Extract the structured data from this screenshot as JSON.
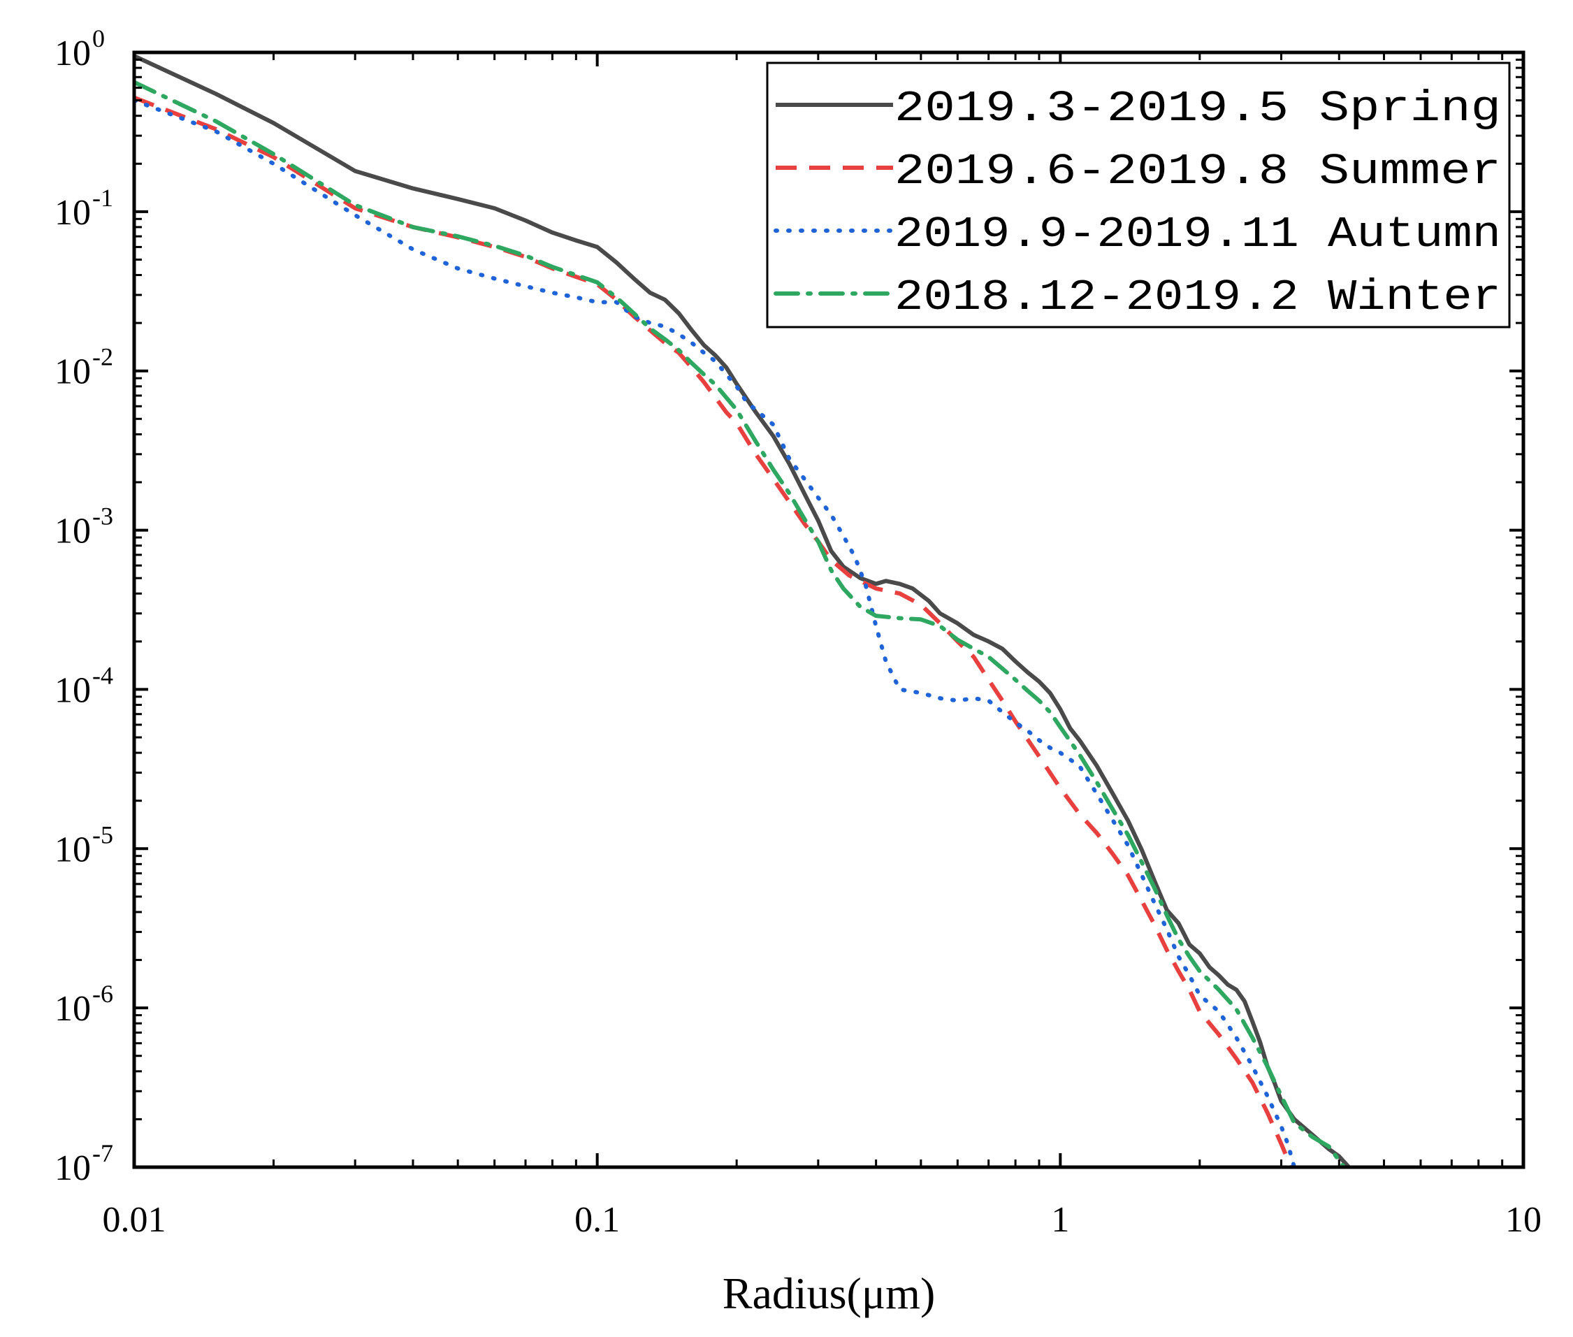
{
  "chart_data": {
    "type": "line",
    "title": "",
    "xlabel": "Radius(μm)",
    "ylabel": "",
    "xscale": "log",
    "yscale": "log",
    "xlim": [
      0.01,
      10
    ],
    "ylim": [
      1e-07,
      1
    ],
    "grid": false,
    "legend_position": "top-right",
    "x_ticks": [
      {
        "value": 0.01,
        "label": "0.01"
      },
      {
        "value": 0.1,
        "label": "0.1"
      },
      {
        "value": 1,
        "label": "1"
      },
      {
        "value": 10,
        "label": "10"
      }
    ],
    "y_ticks": [
      {
        "value": 1,
        "base": "10",
        "exp": "0"
      },
      {
        "value": 0.1,
        "base": "10",
        "exp": "-1"
      },
      {
        "value": 0.01,
        "base": "10",
        "exp": "-2"
      },
      {
        "value": 0.001,
        "base": "10",
        "exp": "-3"
      },
      {
        "value": 0.0001,
        "base": "10",
        "exp": "-4"
      },
      {
        "value": 1e-05,
        "base": "10",
        "exp": "-5"
      },
      {
        "value": 1e-06,
        "base": "10",
        "exp": "-6"
      },
      {
        "value": 1e-07,
        "base": "10",
        "exp": "-7"
      }
    ],
    "series": [
      {
        "name": "2019.3-2019.5  Spring",
        "color": "#4a4a4a",
        "style": "solid",
        "points": [
          [
            0.01,
            0.95
          ],
          [
            0.015,
            0.55
          ],
          [
            0.02,
            0.36
          ],
          [
            0.03,
            0.18
          ],
          [
            0.04,
            0.14
          ],
          [
            0.05,
            0.12
          ],
          [
            0.06,
            0.105
          ],
          [
            0.07,
            0.088
          ],
          [
            0.08,
            0.074
          ],
          [
            0.09,
            0.066
          ],
          [
            0.1,
            0.06
          ],
          [
            0.11,
            0.048
          ],
          [
            0.12,
            0.038
          ],
          [
            0.13,
            0.031
          ],
          [
            0.14,
            0.028
          ],
          [
            0.15,
            0.023
          ],
          [
            0.16,
            0.018
          ],
          [
            0.17,
            0.0145
          ],
          [
            0.18,
            0.0125
          ],
          [
            0.19,
            0.0105
          ],
          [
            0.2,
            0.0083
          ],
          [
            0.22,
            0.0055
          ],
          [
            0.24,
            0.0039
          ],
          [
            0.26,
            0.0026
          ],
          [
            0.28,
            0.0017
          ],
          [
            0.3,
            0.00115
          ],
          [
            0.32,
            0.00074
          ],
          [
            0.34,
            0.00059
          ],
          [
            0.37,
            0.0005
          ],
          [
            0.4,
            0.00046
          ],
          [
            0.42,
            0.00048
          ],
          [
            0.45,
            0.00046
          ],
          [
            0.48,
            0.00043
          ],
          [
            0.52,
            0.00036
          ],
          [
            0.55,
            0.0003
          ],
          [
            0.6,
            0.00026
          ],
          [
            0.65,
            0.00022
          ],
          [
            0.7,
            0.0002
          ],
          [
            0.75,
            0.00018
          ],
          [
            0.8,
            0.00015
          ],
          [
            0.85,
            0.000128
          ],
          [
            0.9,
            0.000112
          ],
          [
            0.95,
            9.5e-05
          ],
          [
            1.0,
            7.5e-05
          ],
          [
            1.05,
            5.7e-05
          ],
          [
            1.1,
            4.8e-05
          ],
          [
            1.2,
            3.3e-05
          ],
          [
            1.3,
            2.2e-05
          ],
          [
            1.4,
            1.5e-05
          ],
          [
            1.5,
            9.8e-06
          ],
          [
            1.6,
            6.2e-06
          ],
          [
            1.7,
            4.1e-06
          ],
          [
            1.8,
            3.4e-06
          ],
          [
            1.9,
            2.5e-06
          ],
          [
            2.0,
            2.2e-06
          ],
          [
            2.1,
            1.8e-06
          ],
          [
            2.2,
            1.6e-06
          ],
          [
            2.3,
            1.4e-06
          ],
          [
            2.4,
            1.3e-06
          ],
          [
            2.5,
            1.1e-06
          ],
          [
            2.6,
            8.2e-07
          ],
          [
            2.7,
            6.1e-07
          ],
          [
            2.8,
            4.3e-07
          ],
          [
            2.9,
            3.4e-07
          ],
          [
            3.0,
            2.6e-07
          ],
          [
            3.2,
            2e-07
          ],
          [
            3.5,
            1.6e-07
          ],
          [
            3.8,
            1.3e-07
          ],
          [
            4.0,
            1.17e-07
          ],
          [
            4.2,
            1e-07
          ]
        ]
      },
      {
        "name": "2019.6-2019.8  Summer",
        "color": "#e8403f",
        "style": "dashed",
        "points": [
          [
            0.01,
            0.52
          ],
          [
            0.015,
            0.33
          ],
          [
            0.02,
            0.22
          ],
          [
            0.03,
            0.105
          ],
          [
            0.04,
            0.08
          ],
          [
            0.05,
            0.069
          ],
          [
            0.06,
            0.06
          ],
          [
            0.07,
            0.052
          ],
          [
            0.08,
            0.044
          ],
          [
            0.09,
            0.039
          ],
          [
            0.1,
            0.035
          ],
          [
            0.11,
            0.028
          ],
          [
            0.12,
            0.022
          ],
          [
            0.13,
            0.018
          ],
          [
            0.14,
            0.015
          ],
          [
            0.15,
            0.013
          ],
          [
            0.16,
            0.0105
          ],
          [
            0.17,
            0.0085
          ],
          [
            0.18,
            0.0068
          ],
          [
            0.19,
            0.0055
          ],
          [
            0.2,
            0.0047
          ],
          [
            0.22,
            0.003
          ],
          [
            0.24,
            0.0021
          ],
          [
            0.26,
            0.0015
          ],
          [
            0.28,
            0.0011
          ],
          [
            0.3,
            0.00085
          ],
          [
            0.32,
            0.00065
          ],
          [
            0.35,
            0.00052
          ],
          [
            0.4,
            0.00043
          ],
          [
            0.45,
            0.0004
          ],
          [
            0.5,
            0.00034
          ],
          [
            0.55,
            0.00026
          ],
          [
            0.6,
            0.0002
          ],
          [
            0.65,
            0.00016
          ],
          [
            0.7,
            0.000115
          ],
          [
            0.75,
            8.5e-05
          ],
          [
            0.8,
            6.3e-05
          ],
          [
            0.9,
            3.8e-05
          ],
          [
            1.0,
            2.4e-05
          ],
          [
            1.1,
            1.65e-05
          ],
          [
            1.2,
            1.25e-05
          ],
          [
            1.3,
            9.2e-06
          ],
          [
            1.4,
            6.8e-06
          ],
          [
            1.5,
            4.7e-06
          ],
          [
            1.6,
            3.3e-06
          ],
          [
            1.7,
            2.3e-06
          ],
          [
            1.8,
            1.7e-06
          ],
          [
            1.9,
            1.3e-06
          ],
          [
            2.0,
            9.5e-07
          ],
          [
            2.2,
            6.8e-07
          ],
          [
            2.4,
            4.8e-07
          ],
          [
            2.6,
            3.4e-07
          ],
          [
            2.8,
            2.2e-07
          ],
          [
            3.0,
            1.4e-07
          ],
          [
            3.15,
            1e-07
          ]
        ]
      },
      {
        "name": "2019.9-2019.11 Autumn",
        "color": "#1e64d8",
        "style": "dotted",
        "points": [
          [
            0.01,
            0.5
          ],
          [
            0.015,
            0.32
          ],
          [
            0.02,
            0.2
          ],
          [
            0.03,
            0.095
          ],
          [
            0.04,
            0.058
          ],
          [
            0.05,
            0.044
          ],
          [
            0.06,
            0.038
          ],
          [
            0.07,
            0.034
          ],
          [
            0.08,
            0.031
          ],
          [
            0.09,
            0.029
          ],
          [
            0.1,
            0.027
          ],
          [
            0.11,
            0.027
          ],
          [
            0.12,
            0.022
          ],
          [
            0.13,
            0.02
          ],
          [
            0.14,
            0.019
          ],
          [
            0.15,
            0.017
          ],
          [
            0.16,
            0.015
          ],
          [
            0.17,
            0.013
          ],
          [
            0.18,
            0.0115
          ],
          [
            0.19,
            0.0095
          ],
          [
            0.2,
            0.008
          ],
          [
            0.21,
            0.0064
          ],
          [
            0.22,
            0.0057
          ],
          [
            0.24,
            0.0046
          ],
          [
            0.26,
            0.0028
          ],
          [
            0.28,
            0.0021
          ],
          [
            0.3,
            0.0016
          ],
          [
            0.32,
            0.00125
          ],
          [
            0.34,
            0.00092
          ],
          [
            0.36,
            0.00068
          ],
          [
            0.38,
            0.00045
          ],
          [
            0.4,
            0.00025
          ],
          [
            0.42,
            0.00015
          ],
          [
            0.45,
            0.0001
          ],
          [
            0.5,
            9.5e-05
          ],
          [
            0.55,
            8.8e-05
          ],
          [
            0.6,
            8.5e-05
          ],
          [
            0.65,
            8.8e-05
          ],
          [
            0.7,
            8.5e-05
          ],
          [
            0.75,
            7.2e-05
          ],
          [
            0.8,
            6.2e-05
          ],
          [
            0.85,
            5.5e-05
          ],
          [
            0.9,
            4.8e-05
          ],
          [
            0.95,
            4.3e-05
          ],
          [
            1.0,
            4e-05
          ],
          [
            1.1,
            3.3e-05
          ],
          [
            1.2,
            2.2e-05
          ],
          [
            1.3,
            1.5e-05
          ],
          [
            1.4,
            1.05e-05
          ],
          [
            1.5,
            6.8e-06
          ],
          [
            1.6,
            4.5e-06
          ],
          [
            1.7,
            3.1e-06
          ],
          [
            1.8,
            2.1e-06
          ],
          [
            1.9,
            1.6e-06
          ],
          [
            2.0,
            1.2e-06
          ],
          [
            2.2,
            9.5e-07
          ],
          [
            2.4,
            6.5e-07
          ],
          [
            2.6,
            4.3e-07
          ],
          [
            2.8,
            2.8e-07
          ],
          [
            3.0,
            1.8e-07
          ],
          [
            3.1,
            1.4e-07
          ],
          [
            3.2,
            1e-07
          ]
        ]
      },
      {
        "name": "2018.12-2019.2 Winter",
        "color": "#2ea860",
        "style": "dashdot",
        "points": [
          [
            0.01,
            0.65
          ],
          [
            0.015,
            0.37
          ],
          [
            0.02,
            0.23
          ],
          [
            0.03,
            0.11
          ],
          [
            0.04,
            0.08
          ],
          [
            0.05,
            0.07
          ],
          [
            0.06,
            0.061
          ],
          [
            0.07,
            0.053
          ],
          [
            0.08,
            0.045
          ],
          [
            0.09,
            0.04
          ],
          [
            0.1,
            0.036
          ],
          [
            0.11,
            0.029
          ],
          [
            0.12,
            0.023
          ],
          [
            0.13,
            0.0185
          ],
          [
            0.14,
            0.0158
          ],
          [
            0.15,
            0.0135
          ],
          [
            0.16,
            0.0112
          ],
          [
            0.17,
            0.0095
          ],
          [
            0.18,
            0.0082
          ],
          [
            0.19,
            0.0068
          ],
          [
            0.2,
            0.0057
          ],
          [
            0.22,
            0.0036
          ],
          [
            0.24,
            0.0024
          ],
          [
            0.26,
            0.0017
          ],
          [
            0.28,
            0.00118
          ],
          [
            0.3,
            0.00085
          ],
          [
            0.32,
            0.00056
          ],
          [
            0.34,
            0.00043
          ],
          [
            0.37,
            0.00033
          ],
          [
            0.4,
            0.00029
          ],
          [
            0.45,
            0.00028
          ],
          [
            0.5,
            0.000275
          ],
          [
            0.55,
            0.00025
          ],
          [
            0.6,
            0.000205
          ],
          [
            0.65,
            0.00018
          ],
          [
            0.7,
            0.00016
          ],
          [
            0.75,
            0.000135
          ],
          [
            0.8,
            0.000115
          ],
          [
            0.85,
            9.8e-05
          ],
          [
            0.9,
            8.5e-05
          ],
          [
            0.95,
            7.2e-05
          ],
          [
            1.0,
            5.8e-05
          ],
          [
            1.1,
            3.9e-05
          ],
          [
            1.2,
            2.6e-05
          ],
          [
            1.3,
            1.75e-05
          ],
          [
            1.4,
            1.22e-05
          ],
          [
            1.5,
            8.2e-06
          ],
          [
            1.6,
            5.6e-06
          ],
          [
            1.7,
            3.8e-06
          ],
          [
            1.8,
            2.7e-06
          ],
          [
            1.9,
            2.1e-06
          ],
          [
            2.0,
            1.7e-06
          ],
          [
            2.2,
            1.3e-06
          ],
          [
            2.4,
            9.8e-07
          ],
          [
            2.6,
            6.5e-07
          ],
          [
            2.8,
            4.3e-07
          ],
          [
            3.0,
            2.8e-07
          ],
          [
            3.2,
            1.9e-07
          ],
          [
            3.5,
            1.55e-07
          ],
          [
            3.8,
            1.35e-07
          ],
          [
            4.1,
            1e-07
          ]
        ]
      }
    ]
  }
}
